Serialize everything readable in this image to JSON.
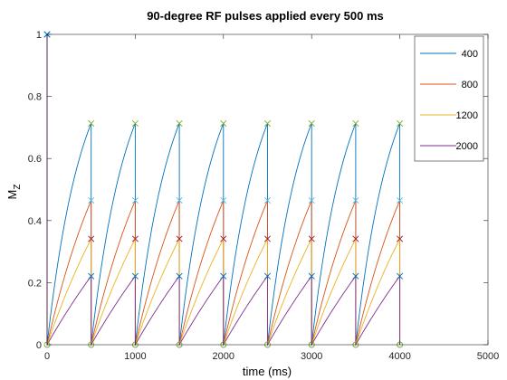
{
  "chart_data": {
    "type": "line",
    "title": "90-degree RF pulses applied every 500 ms",
    "xlabel": "time (ms)",
    "ylabel_main": "M",
    "ylabel_sub": "Z",
    "xlim": [
      0,
      5000
    ],
    "ylim": [
      0,
      1
    ],
    "xticks": [
      0,
      1000,
      2000,
      3000,
      4000,
      5000
    ],
    "xtick_labels": [
      "0",
      "1000",
      "2000",
      "3000",
      "4000",
      "5000"
    ],
    "yticks": [
      0,
      0.2,
      0.4,
      0.6,
      0.8,
      1
    ],
    "ytick_labels": [
      "0",
      "0.2",
      "0.4",
      "0.6",
      "0.8",
      "1"
    ],
    "grid": false,
    "legend_position": "top-right",
    "pulse_times": [
      0,
      500,
      1000,
      1500,
      2000,
      2500,
      3000,
      3500,
      4000
    ],
    "series": [
      {
        "name": "400",
        "color": "#0072bd",
        "t1": 400,
        "pre_pulse_values": [
          1,
          0.713,
          0.713,
          0.713,
          0.713,
          0.713,
          0.713,
          0.713,
          0.713
        ],
        "peak_marker_color": "#77ac30",
        "peak_marker": "x"
      },
      {
        "name": "800",
        "color": "#d95319",
        "t1": 800,
        "pre_pulse_values": [
          1,
          0.465,
          0.465,
          0.465,
          0.465,
          0.465,
          0.465,
          0.465,
          0.465
        ],
        "peak_marker_color": "#4dbeee",
        "peak_marker": "x"
      },
      {
        "name": "1200",
        "color": "#edb120",
        "t1": 1200,
        "pre_pulse_values": [
          1,
          0.341,
          0.341,
          0.341,
          0.341,
          0.341,
          0.341,
          0.341,
          0.341
        ],
        "peak_marker_color": "#a2142f",
        "peak_marker": "x"
      },
      {
        "name": "2000",
        "color": "#7e2f8e",
        "t1": 2000,
        "pre_pulse_values": [
          1,
          0.221,
          0.221,
          0.221,
          0.221,
          0.221,
          0.221,
          0.221,
          0.221
        ],
        "peak_marker_color": "#0072bd",
        "peak_marker": "x"
      }
    ],
    "post_pulse_value": 0,
    "post_pulse_marker": "o",
    "post_pulse_marker_color": "#77ac30"
  }
}
